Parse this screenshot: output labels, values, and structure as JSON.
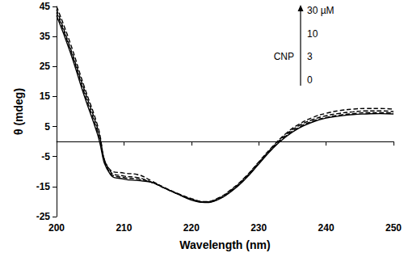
{
  "chart_data": {
    "type": "line",
    "x_label": "Wavelength (nm)",
    "y_label": "θ (mdeg)",
    "annotation": "CNP",
    "x": [
      200,
      202,
      204,
      206,
      208,
      210,
      212,
      214,
      216,
      218,
      220,
      222,
      224,
      226,
      228,
      230,
      232,
      234,
      236,
      238,
      240,
      242,
      244,
      246,
      248,
      250
    ],
    "series": [
      {
        "name": "0",
        "color": "#000000",
        "line_style": "solid",
        "values": [
          42,
          30,
          16,
          3,
          -11,
          -12.5,
          -13,
          -13.5,
          -15.5,
          -17.5,
          -19.5,
          -20.3,
          -19.3,
          -16.5,
          -12.5,
          -7.5,
          -2.5,
          1.5,
          4.5,
          6.5,
          7.8,
          8.5,
          9,
          9.2,
          9.3,
          9.2
        ]
      },
      {
        "name": "3",
        "color": "#000000",
        "line_style": "dashed",
        "values": [
          43,
          31,
          17,
          4,
          -10.5,
          -12,
          -12.5,
          -13.5,
          -15.5,
          -17.5,
          -19.3,
          -20.2,
          -19.2,
          -16.3,
          -12.3,
          -7.3,
          -2.3,
          1.8,
          4.8,
          6.8,
          8,
          8.8,
          9.3,
          9.6,
          9.6,
          9.5
        ]
      },
      {
        "name": "10",
        "color": "#000000",
        "line_style": "dashed",
        "values": [
          44,
          31.5,
          18,
          5,
          -10,
          -11.5,
          -12,
          -13.5,
          -15.5,
          -17.5,
          -19.2,
          -20.1,
          -19,
          -16,
          -12,
          -7,
          -2,
          2.2,
          5.3,
          7.3,
          8.6,
          9.4,
          9.9,
          10.2,
          10.2,
          10
        ]
      },
      {
        "name": "30 µM",
        "color": "#000000",
        "line_style": "dashed",
        "values": [
          45,
          33,
          19,
          6,
          -9.5,
          -10.5,
          -11,
          -13,
          -15.3,
          -17.3,
          -19,
          -20,
          -18.8,
          -15.8,
          -11.8,
          -6.8,
          -1.8,
          2.6,
          5.8,
          8,
          9.4,
          10.3,
          10.8,
          11,
          11,
          10.8
        ]
      }
    ],
    "xlim": [
      200,
      250
    ],
    "xticks": [
      200,
      210,
      220,
      230,
      240,
      250
    ],
    "ylim": [
      -25,
      45
    ],
    "yticks": [
      -25,
      -15,
      -5,
      5,
      15,
      25,
      35,
      45
    ],
    "grid": false
  }
}
